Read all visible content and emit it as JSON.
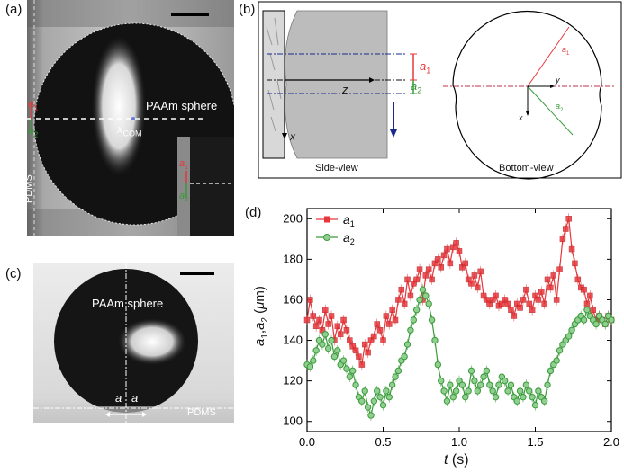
{
  "panels": {
    "a": {
      "label": "(a)",
      "sphere_label": "PAAm sphere",
      "com_symbol": "x",
      "com_subscript": "COM",
      "substrate_label": "PDMS",
      "a1_symbol": "a",
      "a1_sub": "1",
      "a2_symbol": "a",
      "a2_sub": "2"
    },
    "b": {
      "label": "(b)",
      "side_caption": "Side-view",
      "bottom_caption": "Bottom-view",
      "z_axis": "z",
      "x_axis": "x",
      "y_axis": "y",
      "a1_symbol": "a",
      "a1_sub": "1",
      "a2_symbol": "a",
      "a2_sub": "2"
    },
    "c": {
      "label": "(c)",
      "sphere_label": "PAAm sphere",
      "substrate_label": "PDMS",
      "a_left": "a",
      "a_right": "a"
    },
    "d": {
      "label": "(d)"
    }
  },
  "colors": {
    "a1": "#e8363b",
    "a2": "#3a9a3a",
    "arrow": "#1a2a8a"
  },
  "chart_data": {
    "type": "line",
    "xlabel": "t (s)",
    "xlabel_symbol": "t",
    "xlabel_unit": " (s)",
    "ylabel": "a1, a2 (μm)",
    "xlim": [
      0.0,
      2.0
    ],
    "ylim": [
      95,
      205
    ],
    "xticks": [
      0.0,
      0.5,
      1.0,
      1.5,
      2.0
    ],
    "xtick_labels": [
      "0.0",
      "0.5",
      "1.0",
      "1.5",
      "2.0"
    ],
    "yticks": [
      100,
      120,
      140,
      160,
      180,
      200
    ],
    "ytick_labels": [
      "100",
      "120",
      "140",
      "160",
      "180",
      "200"
    ],
    "legend_position": "top-left",
    "series": [
      {
        "name": "a1",
        "marker": "square",
        "color": "#e8363b",
        "x": [
          0.0,
          0.02,
          0.04,
          0.06,
          0.08,
          0.1,
          0.12,
          0.14,
          0.16,
          0.18,
          0.2,
          0.22,
          0.24,
          0.26,
          0.28,
          0.3,
          0.32,
          0.34,
          0.36,
          0.38,
          0.4,
          0.42,
          0.44,
          0.46,
          0.48,
          0.5,
          0.52,
          0.54,
          0.56,
          0.58,
          0.6,
          0.62,
          0.64,
          0.66,
          0.68,
          0.7,
          0.72,
          0.74,
          0.76,
          0.78,
          0.8,
          0.82,
          0.84,
          0.86,
          0.88,
          0.9,
          0.92,
          0.94,
          0.96,
          0.98,
          1.0,
          1.02,
          1.04,
          1.06,
          1.08,
          1.1,
          1.12,
          1.14,
          1.16,
          1.18,
          1.2,
          1.22,
          1.24,
          1.26,
          1.28,
          1.3,
          1.32,
          1.34,
          1.36,
          1.38,
          1.4,
          1.42,
          1.44,
          1.46,
          1.48,
          1.5,
          1.52,
          1.54,
          1.56,
          1.58,
          1.6,
          1.62,
          1.64,
          1.66,
          1.68,
          1.7,
          1.72,
          1.74,
          1.76,
          1.78,
          1.8,
          1.82,
          1.84,
          1.86,
          1.88,
          1.9,
          1.92,
          1.94,
          1.96,
          1.98,
          2.0
        ],
        "values": [
          150,
          160,
          152,
          147,
          150,
          145,
          155,
          148,
          152,
          140,
          147,
          143,
          150,
          145,
          140,
          137,
          135,
          132,
          128,
          138,
          134,
          140,
          142,
          148,
          145,
          140,
          152,
          148,
          155,
          150,
          160,
          165,
          158,
          170,
          162,
          168,
          170,
          175,
          160,
          172,
          175,
          170,
          178,
          180,
          176,
          182,
          185,
          178,
          186,
          188,
          184,
          176,
          178,
          170,
          168,
          172,
          166,
          174,
          162,
          160,
          158,
          160,
          162,
          157,
          158,
          160,
          158,
          155,
          152,
          158,
          156,
          160,
          165,
          158,
          155,
          162,
          160,
          164,
          158,
          170,
          166,
          172,
          160,
          175,
          190,
          195,
          200,
          185,
          178,
          170,
          166,
          165,
          158,
          162,
          155,
          150,
          152,
          150,
          148,
          152,
          150
        ]
      },
      {
        "name": "a2",
        "marker": "circle",
        "color": "#3a9a3a",
        "x": [
          0.0,
          0.02,
          0.04,
          0.06,
          0.08,
          0.1,
          0.12,
          0.14,
          0.16,
          0.18,
          0.2,
          0.22,
          0.24,
          0.26,
          0.28,
          0.3,
          0.32,
          0.34,
          0.36,
          0.38,
          0.4,
          0.42,
          0.44,
          0.46,
          0.48,
          0.5,
          0.52,
          0.54,
          0.56,
          0.58,
          0.6,
          0.62,
          0.64,
          0.66,
          0.68,
          0.7,
          0.72,
          0.74,
          0.76,
          0.78,
          0.8,
          0.82,
          0.84,
          0.86,
          0.88,
          0.9,
          0.92,
          0.94,
          0.96,
          0.98,
          1.0,
          1.02,
          1.04,
          1.06,
          1.08,
          1.1,
          1.12,
          1.14,
          1.16,
          1.18,
          1.2,
          1.22,
          1.24,
          1.26,
          1.28,
          1.3,
          1.32,
          1.34,
          1.36,
          1.38,
          1.4,
          1.42,
          1.44,
          1.46,
          1.48,
          1.5,
          1.52,
          1.54,
          1.56,
          1.58,
          1.6,
          1.62,
          1.64,
          1.66,
          1.68,
          1.7,
          1.72,
          1.74,
          1.76,
          1.78,
          1.8,
          1.82,
          1.84,
          1.86,
          1.88,
          1.9,
          1.92,
          1.94,
          1.96,
          1.98,
          2.0
        ],
        "values": [
          128,
          127,
          130,
          135,
          140,
          138,
          143,
          136,
          140,
          132,
          135,
          128,
          130,
          126,
          122,
          125,
          118,
          112,
          110,
          115,
          107,
          103,
          110,
          115,
          112,
          108,
          115,
          112,
          118,
          122,
          125,
          130,
          132,
          138,
          145,
          150,
          155,
          160,
          165,
          162,
          158,
          150,
          140,
          128,
          120,
          115,
          110,
          118,
          112,
          115,
          120,
          118,
          112,
          115,
          125,
          120,
          115,
          118,
          122,
          125,
          118,
          115,
          112,
          118,
          122,
          120,
          115,
          118,
          112,
          110,
          115,
          112,
          118,
          115,
          112,
          108,
          115,
          112,
          110,
          118,
          125,
          128,
          130,
          135,
          138,
          140,
          142,
          145,
          148,
          150,
          152,
          150,
          155,
          152,
          150,
          148,
          152,
          150,
          148,
          152,
          150
        ]
      }
    ]
  }
}
